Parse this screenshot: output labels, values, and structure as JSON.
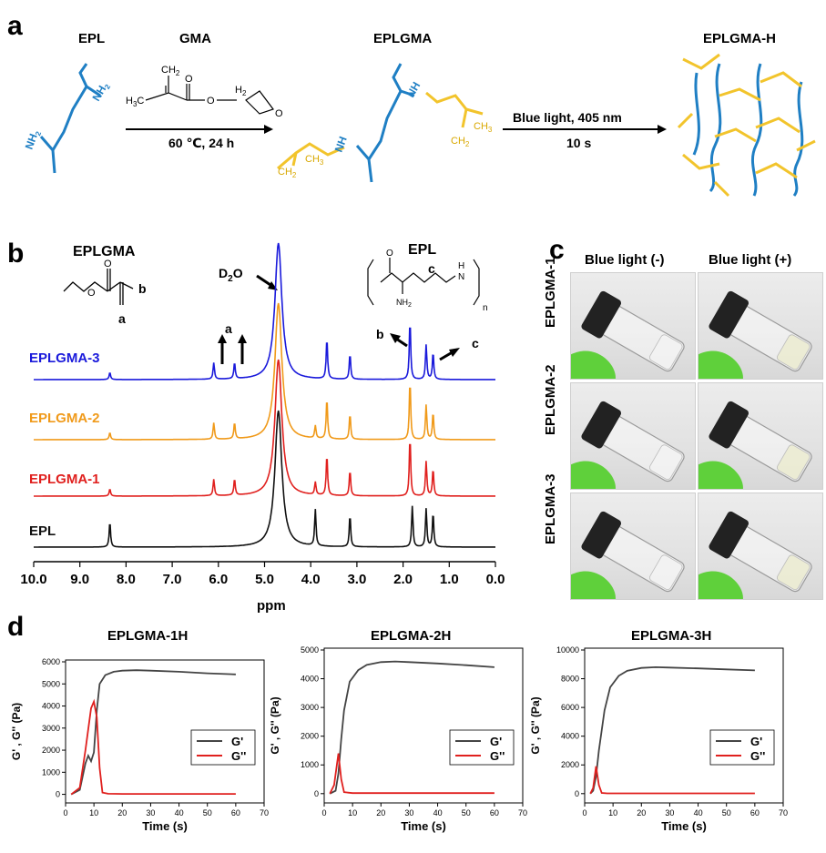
{
  "panel_a": {
    "letter": "a",
    "epl_label": "EPL",
    "gma_label": "GMA",
    "eplgma_label": "EPLGMA",
    "eplgmah_label": "EPLGMA-H",
    "condition1": "60 ℃, 24 h",
    "condition2_line1": "Blue light, 405 nm",
    "condition2_line2": "10 s",
    "gma_ch2_top": "CH",
    "gma_ch2_sub": "2",
    "gma_o": "O",
    "gma_h3c": "H",
    "gma_h3c_sub": "3",
    "gma_h3c_c": "C",
    "gma_o2": "O",
    "gma_h2": "H",
    "gma_h2_sub": "2",
    "gma_o3": "O",
    "nh2": "NH",
    "nh2_sub": "2",
    "nh": "NH",
    "ch3": "CH",
    "ch3_sub": "3",
    "ch2": "CH",
    "ch2_sub": "2",
    "colors": {
      "chain_blue": "#1f7fc4",
      "graft_yellow": "#f2c42c"
    }
  },
  "panel_b": {
    "letter": "b",
    "eplgma_title": "EPLGMA",
    "epl_title": "EPL",
    "d2o": "D",
    "d2o_sub": "2",
    "d2o_o": "O",
    "label_a": "a",
    "label_b": "b",
    "label_c": "c",
    "struct_n": "n",
    "struct_nh2": "NH",
    "struct_nh2_sub": "2",
    "struct_o": "O",
    "struct_h": "H",
    "struct_n_atom": "N",
    "xlabel": "ppm",
    "chart_data": {
      "type": "line",
      "xlabel": "ppm",
      "xlim": [
        10.0,
        0.0
      ],
      "xticks": [
        "10.0",
        "9.0",
        "8.0",
        "7.0",
        "6.0",
        "5.0",
        "4.0",
        "3.0",
        "2.0",
        "1.0",
        "0.0"
      ],
      "series": [
        {
          "name": "EPLGMA-3",
          "color": "#1a1adb",
          "peaks": [
            8.35,
            6.1,
            5.65,
            4.7,
            3.65,
            3.15,
            1.85,
            1.5,
            1.35
          ]
        },
        {
          "name": "EPLGMA-2",
          "color": "#f09a1a",
          "peaks": [
            8.35,
            6.1,
            5.65,
            4.7,
            3.9,
            3.65,
            3.15,
            1.85,
            1.5,
            1.35
          ]
        },
        {
          "name": "EPLGMA-1",
          "color": "#e0201e",
          "peaks": [
            8.35,
            6.1,
            5.65,
            4.7,
            3.9,
            3.65,
            3.15,
            1.85,
            1.5,
            1.35
          ]
        },
        {
          "name": "EPL",
          "color": "#111111",
          "peaks": [
            8.35,
            4.7,
            3.9,
            3.15,
            1.8,
            1.5,
            1.35
          ]
        }
      ]
    }
  },
  "panel_c": {
    "letter": "c",
    "col1": "Blue light (-)",
    "col2": "Blue light (+)",
    "rows": [
      "EPLGMA-1",
      "EPLGMA-2",
      "EPLGMA-3"
    ]
  },
  "panel_d": {
    "letter": "d",
    "ylabel": "G' , G'' (Pa)",
    "xlabel": "Time (s)",
    "legend_g1": "G'",
    "legend_g2": "G''",
    "chart_data": [
      {
        "type": "line",
        "title": "EPLGMA-1H",
        "xlim": [
          0,
          70
        ],
        "ylim": [
          0,
          6000
        ],
        "xticks": [
          0,
          10,
          20,
          30,
          40,
          50,
          60,
          70
        ],
        "yticks": [
          0,
          1000,
          2000,
          3000,
          4000,
          5000,
          6000
        ],
        "series": [
          {
            "name": "G'",
            "color": "#444444",
            "x": [
              2,
              5,
              7,
              8,
              9,
              10,
              11,
              12,
              14,
              17,
              20,
              25,
              30,
              40,
              50,
              60
            ],
            "y": [
              0,
              200,
              1400,
              1750,
              1500,
              1900,
              3800,
              5000,
              5400,
              5550,
              5600,
              5620,
              5600,
              5550,
              5480,
              5430
            ]
          },
          {
            "name": "G''",
            "color": "#e0201e",
            "x": [
              2,
              5,
              7,
              9,
              10,
              11,
              12,
              13,
              15,
              20,
              30,
              40,
              50,
              60
            ],
            "y": [
              0,
              300,
              2000,
              3900,
              4200,
              3500,
              1200,
              80,
              30,
              20,
              20,
              20,
              20,
              20
            ]
          }
        ]
      },
      {
        "type": "line",
        "title": "EPLGMA-2H",
        "xlim": [
          0,
          70
        ],
        "ylim": [
          0,
          5000
        ],
        "xticks": [
          0,
          10,
          20,
          30,
          40,
          50,
          60,
          70
        ],
        "yticks": [
          0,
          1000,
          2000,
          3000,
          4000,
          5000
        ],
        "series": [
          {
            "name": "G'",
            "color": "#444444",
            "x": [
              2,
              4,
              5,
              6,
              7,
              9,
              12,
              15,
              20,
              25,
              30,
              40,
              50,
              60
            ],
            "y": [
              0,
              100,
              700,
              1900,
              2900,
              3900,
              4300,
              4480,
              4580,
              4600,
              4580,
              4530,
              4470,
              4400
            ]
          },
          {
            "name": "G''",
            "color": "#e0201e",
            "x": [
              2,
              3.5,
              5,
              6,
              7,
              10,
              20,
              30,
              40,
              50,
              60
            ],
            "y": [
              0,
              300,
              1400,
              500,
              50,
              20,
              20,
              20,
              20,
              20,
              20
            ]
          }
        ]
      },
      {
        "type": "line",
        "title": "EPLGMA-3H",
        "xlim": [
          0,
          70
        ],
        "ylim": [
          0,
          10000
        ],
        "xticks": [
          0,
          10,
          20,
          30,
          40,
          50,
          60,
          70
        ],
        "yticks": [
          0,
          2000,
          4000,
          6000,
          8000,
          10000
        ],
        "series": [
          {
            "name": "G'",
            "color": "#444444",
            "x": [
              2,
              3,
              4,
              5,
              7,
              9,
              12,
              15,
              20,
              25,
              30,
              40,
              50,
              60
            ],
            "y": [
              0,
              200,
              1200,
              3000,
              5800,
              7400,
              8200,
              8550,
              8750,
              8800,
              8780,
              8720,
              8650,
              8580
            ]
          },
          {
            "name": "G''",
            "color": "#e0201e",
            "x": [
              2,
              3,
              4,
              5,
              6,
              8,
              20,
              30,
              40,
              50,
              60
            ],
            "y": [
              0,
              400,
              1900,
              600,
              50,
              20,
              20,
              20,
              20,
              20,
              20
            ]
          }
        ]
      }
    ]
  }
}
